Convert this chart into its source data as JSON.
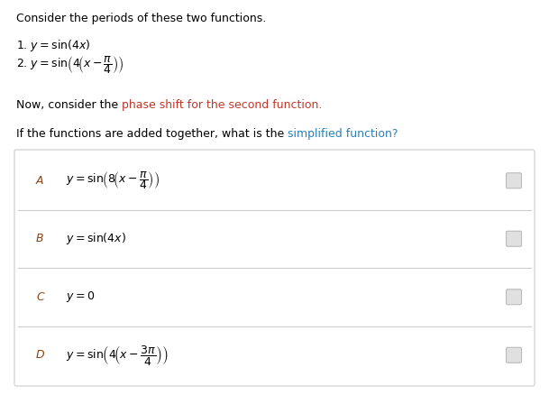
{
  "background_color": "#ffffff",
  "title_text": "Consider the periods of these two functions.",
  "title_color": "#000000",
  "intro1": "1. $y = \\sin(4x)$",
  "intro2": "2. $y = \\sin\\!\\left(4\\!\\left(x - \\dfrac{\\pi}{4}\\right)\\right)$",
  "phase_part1": "Now, consider the ",
  "phase_part2": "phase shift for the second function.",
  "phase_color1": "#000000",
  "phase_color2": "#c0392b",
  "question_part1": "If the functions are added together, what is the ",
  "question_part2": "simplified function?",
  "question_color1": "#000000",
  "question_color2": "#2980b9",
  "choices": [
    {
      "label": "A",
      "formula": "$y = \\sin\\!\\left(8\\!\\left(x - \\dfrac{\\pi}{4}\\right)\\right)$"
    },
    {
      "label": "B",
      "formula": "$y = \\sin(4x)$"
    },
    {
      "label": "C",
      "formula": "$y = 0$"
    },
    {
      "label": "D",
      "formula": "$y = \\sin\\!\\left(4\\!\\left(x - \\dfrac{3\\pi}{4}\\right)\\right)$"
    }
  ],
  "box_edgecolor": "#cccccc",
  "radio_edgecolor": "#bbbbbb",
  "radio_facecolor": "#e0e0e0",
  "label_colors": [
    "#c0392b",
    "#c0392b",
    "#c0392b",
    "#c0392b"
  ],
  "fontsize_main": 9,
  "fontsize_formula": 9
}
